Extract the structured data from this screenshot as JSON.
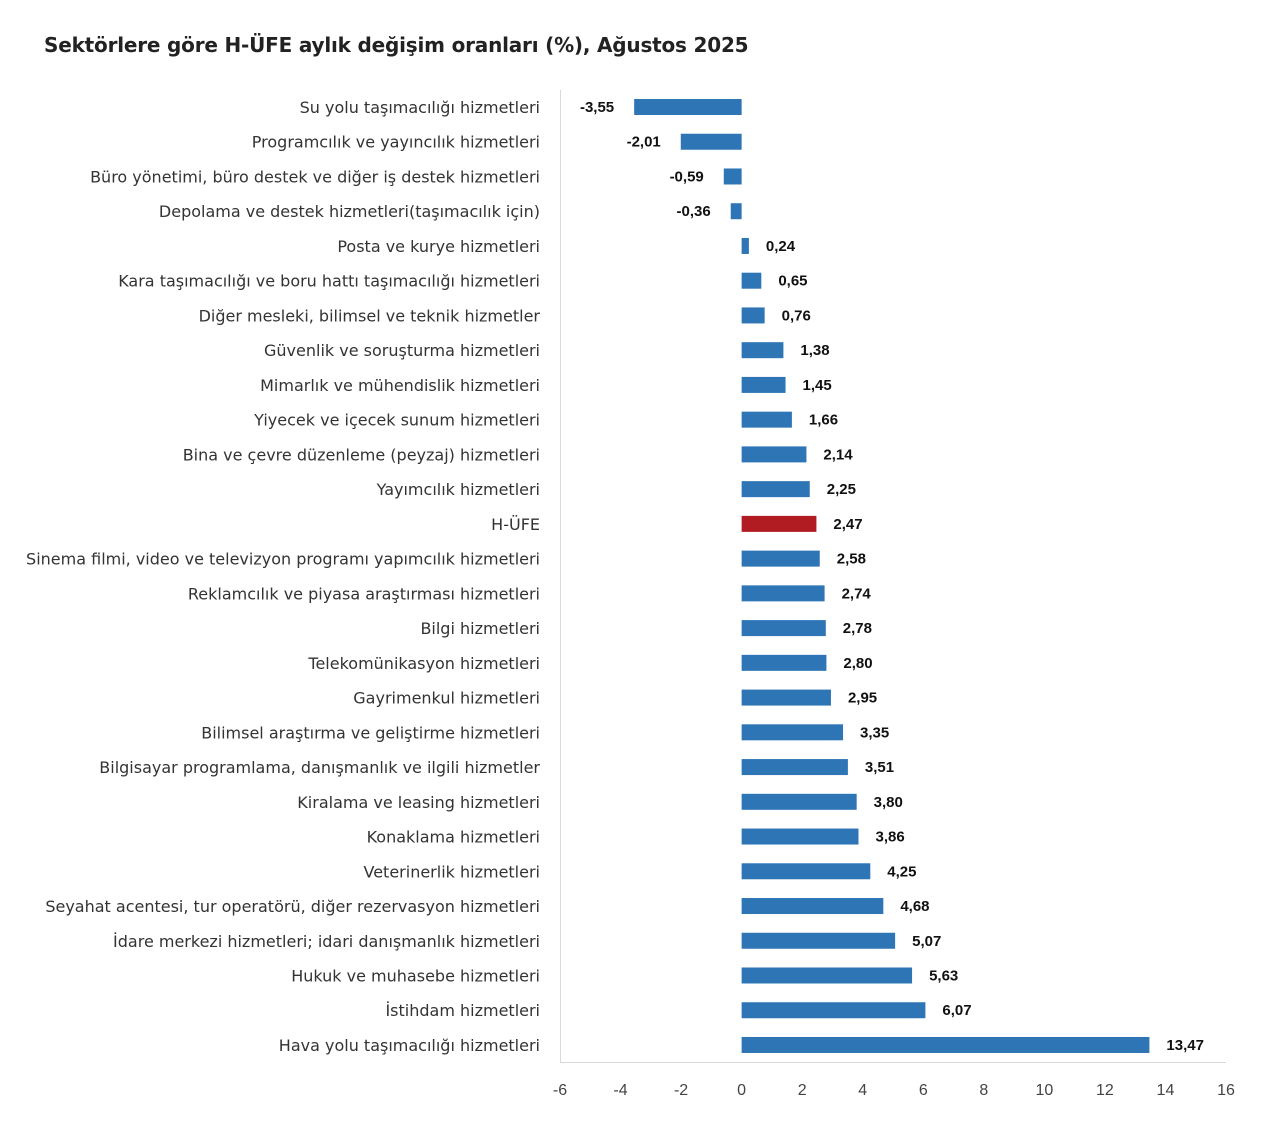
{
  "chart_data": {
    "type": "bar",
    "orientation": "horizontal",
    "title": "Sektörlere göre H-ÜFE aylık değişim oranları (%), Ağustos 2025",
    "xlabel": "",
    "ylabel": "",
    "xlim": [
      -6,
      16
    ],
    "xticks": [
      "-6",
      "-4",
      "-2",
      "0",
      "2",
      "4",
      "6",
      "8",
      "10",
      "12",
      "14",
      "16"
    ],
    "grid": false,
    "legend": "none",
    "colors": {
      "default": "#2e75b6",
      "highlight": "#b01c22"
    },
    "highlight_category": "H-ÜFE",
    "categories": [
      "Su yolu taşımacılığı hizmetleri",
      "Programcılık ve yayıncılık hizmetleri",
      "Büro yönetimi, büro destek ve diğer iş destek hizmetleri",
      "Depolama ve destek hizmetleri(taşımacılık için)",
      "Posta ve kurye hizmetleri",
      "Kara taşımacılığı ve boru hattı taşımacılığı hizmetleri",
      "Diğer mesleki, bilimsel ve teknik hizmetler",
      "Güvenlik ve soruşturma hizmetleri",
      "Mimarlık ve mühendislik hizmetleri",
      "Yiyecek ve içecek sunum hizmetleri",
      "Bina ve çevre düzenleme (peyzaj) hizmetleri",
      "Yayımcılık hizmetleri",
      "H-ÜFE",
      "Sinema filmi, video ve televizyon programı yapımcılık hizmetleri",
      "Reklamcılık ve piyasa araştırması hizmetleri",
      "Bilgi hizmetleri",
      "Telekomünikasyon hizmetleri",
      "Gayrimenkul hizmetleri",
      "Bilimsel araştırma ve geliştirme hizmetleri",
      "Bilgisayar programlama, danışmanlık ve ilgili hizmetler",
      "Kiralama ve leasing hizmetleri",
      "Konaklama hizmetleri",
      "Veterinerlik hizmetleri",
      "Seyahat acentesi, tur operatörü, diğer rezervasyon hizmetleri",
      "İdare merkezi hizmetleri; idari danışmanlık hizmetleri",
      "Hukuk ve muhasebe hizmetleri",
      "İstihdam hizmetleri",
      "Hava yolu taşımacılığı hizmetleri"
    ],
    "values": [
      -3.55,
      -2.01,
      -0.59,
      -0.36,
      0.24,
      0.65,
      0.76,
      1.38,
      1.45,
      1.66,
      2.14,
      2.25,
      2.47,
      2.58,
      2.74,
      2.78,
      2.8,
      2.95,
      3.35,
      3.51,
      3.8,
      3.86,
      4.25,
      4.68,
      5.07,
      5.63,
      6.07,
      13.47
    ],
    "value_labels": [
      "-3,55",
      "-2,01",
      "-0,59",
      "-0,36",
      "0,24",
      "0,65",
      "0,76",
      "1,38",
      "1,45",
      "1,66",
      "2,14",
      "2,25",
      "2,47",
      "2,58",
      "2,74",
      "2,78",
      "2,80",
      "2,95",
      "3,35",
      "3,51",
      "3,80",
      "3,86",
      "4,25",
      "4,68",
      "5,07",
      "5,63",
      "6,07",
      "13,47"
    ]
  }
}
